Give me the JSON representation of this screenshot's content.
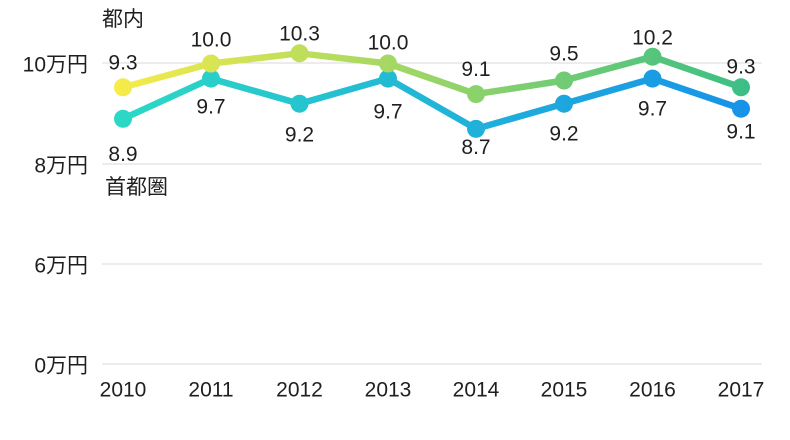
{
  "chart_data": {
    "type": "line",
    "title": "",
    "x_labels": [
      "2010",
      "2011",
      "2012",
      "2013",
      "2014",
      "2015",
      "2016",
      "2017"
    ],
    "y_tick_labels": [
      "10万円",
      "8万円",
      "6万円",
      "0万円"
    ],
    "y_tick_values": [
      10,
      8,
      6,
      0
    ],
    "unit": "万円",
    "series": [
      {
        "name": "都内",
        "values": [
          9.3,
          10.0,
          10.3,
          10.0,
          9.1,
          9.5,
          10.2,
          9.3
        ],
        "gradient_start": "#F8EC49",
        "gradient_end": "#3ABE85"
      },
      {
        "name": "首都圏",
        "values": [
          8.9,
          9.7,
          9.2,
          9.7,
          8.7,
          9.2,
          9.7,
          9.1
        ],
        "gradient_start": "#2CDAC4",
        "gradient_end": "#1792E8"
      }
    ],
    "value_labels_shown": true,
    "value_label_decimals": 1,
    "grid": true,
    "legend_position": "inline-next-to-line-start",
    "axis_note": "y ticks 10,8,6,0 are evenly spaced (broken axis)",
    "colors": {
      "grid": "#D9D9D9",
      "text": "#1F1F1F",
      "background": "#FFFFFF"
    }
  }
}
